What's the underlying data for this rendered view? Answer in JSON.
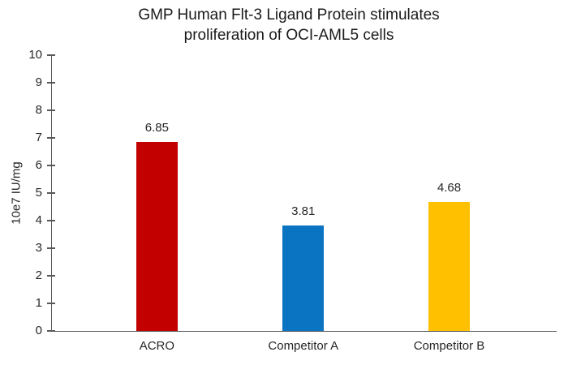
{
  "chart_data": {
    "type": "bar",
    "title": "GMP Human Flt-3 Ligand Protein stimulates proliferation of OCI-AML5 cells",
    "title_line1": "GMP Human Flt-3 Ligand Protein stimulates",
    "title_line2": "proliferation of OCI-AML5 cells",
    "categories": [
      "ACRO",
      "Competitor A",
      "Competitor B"
    ],
    "values": [
      6.85,
      3.81,
      4.68
    ],
    "data_labels": [
      "6.85",
      "3.81",
      "4.68"
    ],
    "bar_colors": [
      "#C30000",
      "#0B74C2",
      "#FFC000"
    ],
    "xlabel": "",
    "ylabel": "10e7 IU/mg",
    "ylim": [
      0,
      10
    ],
    "ytick_interval": 1,
    "ytick_labels": [
      "0",
      "1",
      "2",
      "3",
      "4",
      "5",
      "6",
      "7",
      "8",
      "9",
      "10"
    ],
    "grid": false,
    "legend": "none",
    "axis_color": "#595959",
    "text_color": "#262626",
    "background_color": "#FFFFFF"
  }
}
